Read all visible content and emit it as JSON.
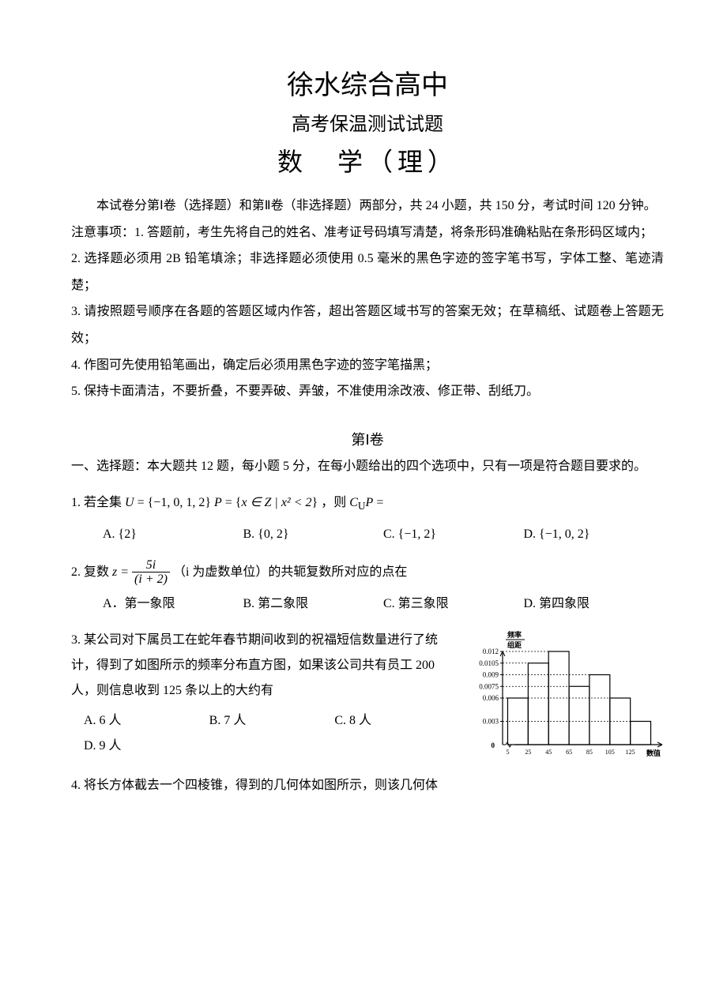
{
  "title": {
    "school": "徐水综合高中",
    "exam": "高考保温测试试题",
    "subject": "数　学（理）"
  },
  "intro": "本试卷分第Ⅰ卷（选择题）和第Ⅱ卷（非选择题）两部分，共 24 小题，共 150 分，考试时间 120 分钟。",
  "notes_first": "注意事项：1. 答题前，考生先将自己的姓名、准考证号码填写清楚，将条形码准确粘贴在条形码区域内；",
  "notes": [
    "2. 选择题必须用 2B 铅笔填涂；非选择题必须使用 0.5 毫米的黑色字迹的签字笔书写，字体工整、笔迹清楚；",
    "3. 请按照题号顺序在各题的答题区域内作答，超出答题区域书写的答案无效；在草稿纸、试题卷上答题无效；",
    "4. 作图可先使用铅笔画出，确定后必须用黑色字迹的签字笔描黑；",
    "5. 保持卡面清洁，不要折叠，不要弄破、弄皱，不准使用涂改液、修正带、刮纸刀。"
  ],
  "section1": {
    "heading": "第Ⅰ卷",
    "desc": "一、选择题：本大题共 12 题，每小题 5 分，在每小题给出的四个选项中，只有一项是符合题目要求的。"
  },
  "q1": {
    "stem_pre": "1. 若全集",
    "stem_post": "，则",
    "stem_eq": "=",
    "U_set": "{−1, 0, 1, 2}",
    "P_def": "x ∈ Z | x² < 2",
    "opts": {
      "A": "A. {2}",
      "B": "B. {0, 2}",
      "C": "C. {−1, 2}",
      "D": "D. {−1, 0, 2}"
    }
  },
  "q2": {
    "stem_pre": "2. 复数",
    "stem_mid": "（i 为虚数单位）的共轭复数所对应的点在",
    "opts": {
      "A": "A．第一象限",
      "B": "B. 第二象限",
      "C": "C. 第三象限",
      "D": "D. 第四象限"
    }
  },
  "q3": {
    "stem": "3. 某公司对下属员工在蛇年春节期间收到的祝福短信数量进行了统计，得到了如图所示的频率分布直方图，如果该公司共有员工 200 人，则信息收到 125 条以上的大约有",
    "opts": {
      "A": "A. 6 人",
      "B": "B. 7 人",
      "C": "C. 8 人",
      "D": "D. 9 人"
    },
    "chart": {
      "type": "histogram",
      "xlabel": "数值",
      "ylabel_top": "频率",
      "ylabel_bot": "组距",
      "x_ticks": [
        "5",
        "25",
        "45",
        "65",
        "85",
        "105",
        "125",
        "145"
      ],
      "y_ticks": [
        "0.003",
        "0.006",
        "0.0075",
        "0.009",
        "0.0105",
        "0.012"
      ],
      "bars": [
        0.006,
        0.0105,
        0.012,
        0.0075,
        0.009,
        0.006,
        0.003
      ],
      "ymax": 0.012,
      "line_color": "#000000",
      "background_color": "#ffffff",
      "font_size": 9
    }
  },
  "q4": {
    "stem": "4. 将长方体截去一个四棱锥，得到的几何体如图所示，则该几何体"
  }
}
